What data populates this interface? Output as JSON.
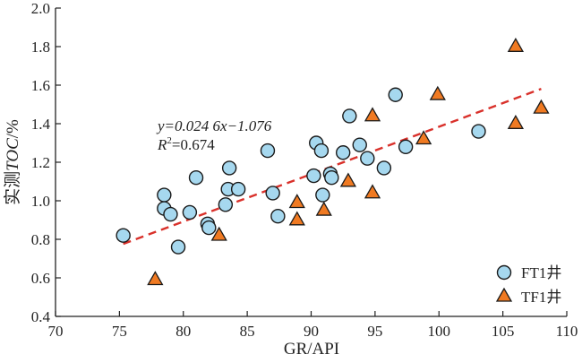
{
  "chart_data": {
    "type": "scatter",
    "xlabel": "GR/API",
    "ylabel": "实测TOC/%",
    "ylabel_parts": {
      "prefix": "实测",
      "italic": "TOC",
      "suffix": "/%"
    },
    "xlim": [
      70,
      110
    ],
    "ylim": [
      0.4,
      2.0
    ],
    "x_ticks": [
      "70",
      "75",
      "80",
      "85",
      "90",
      "95",
      "100",
      "105",
      "110"
    ],
    "y_ticks": [
      "0.4",
      "0.6",
      "0.8",
      "1.0",
      "1.2",
      "1.4",
      "1.6",
      "1.8",
      "2.0"
    ],
    "series": [
      {
        "name": "FT1井",
        "marker": "circle",
        "color": "#a6d8ef",
        "points": [
          [
            75.3,
            0.82
          ],
          [
            78.5,
            1.03
          ],
          [
            78.5,
            0.96
          ],
          [
            79.0,
            0.93
          ],
          [
            79.6,
            0.76
          ],
          [
            80.5,
            0.94
          ],
          [
            81.0,
            1.12
          ],
          [
            81.9,
            0.88
          ],
          [
            82.0,
            0.86
          ],
          [
            83.3,
            0.98
          ],
          [
            83.5,
            1.06
          ],
          [
            83.6,
            1.17
          ],
          [
            84.3,
            1.06
          ],
          [
            86.6,
            1.26
          ],
          [
            87.0,
            1.04
          ],
          [
            87.4,
            0.92
          ],
          [
            90.2,
            1.13
          ],
          [
            90.4,
            1.3
          ],
          [
            90.8,
            1.26
          ],
          [
            90.9,
            1.03
          ],
          [
            91.5,
            1.14
          ],
          [
            91.6,
            1.12
          ],
          [
            92.5,
            1.25
          ],
          [
            93.0,
            1.44
          ],
          [
            93.8,
            1.29
          ],
          [
            94.4,
            1.22
          ],
          [
            95.7,
            1.17
          ],
          [
            96.6,
            1.55
          ],
          [
            97.4,
            1.28
          ],
          [
            103.1,
            1.36
          ]
        ]
      },
      {
        "name": "TF1井",
        "marker": "triangle",
        "color": "#f07a22",
        "points": [
          [
            77.8,
            0.59
          ],
          [
            82.8,
            0.82
          ],
          [
            88.9,
            0.99
          ],
          [
            88.9,
            0.9
          ],
          [
            91.0,
            0.95
          ],
          [
            92.9,
            1.1
          ],
          [
            94.8,
            1.44
          ],
          [
            94.8,
            1.04
          ],
          [
            98.8,
            1.32
          ],
          [
            99.9,
            1.55
          ],
          [
            106.0,
            1.8
          ],
          [
            106.0,
            1.4
          ],
          [
            108.0,
            1.48
          ]
        ]
      }
    ],
    "trendline": {
      "slope": 0.0246,
      "intercept": -1.076,
      "x_range": [
        75.3,
        108
      ],
      "color": "#d9312b",
      "style": "dashed"
    },
    "annotation": {
      "equation": "y=0.024 6x−1.076",
      "r2_value": "=0.674"
    },
    "legend": {
      "position": "bottom-right",
      "entries": [
        "FT1井",
        "TF1井"
      ]
    }
  }
}
